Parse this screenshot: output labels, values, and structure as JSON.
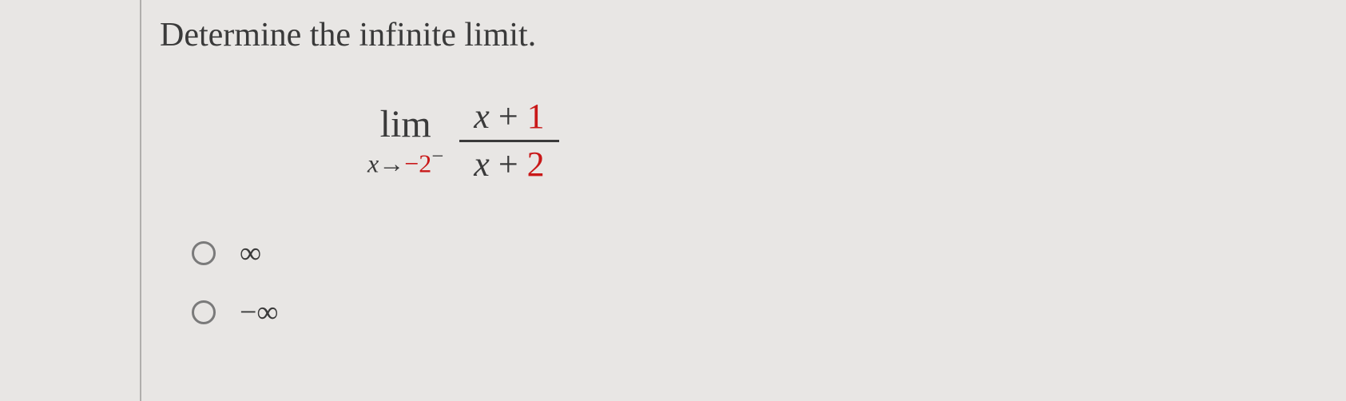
{
  "question": {
    "prompt": "Determine the infinite limit.",
    "expression": {
      "lim_label": "lim",
      "var": "x",
      "arrow": "→",
      "approach_value": "−2",
      "approach_side": "−",
      "numerator_var": "x",
      "numerator_op": " + ",
      "numerator_num": "1",
      "denominator_var": "x",
      "denominator_op": " + ",
      "denominator_num": "2"
    },
    "options": [
      {
        "label": "∞"
      },
      {
        "label": "−∞"
      }
    ]
  },
  "style": {
    "background_color": "#e8e6e4",
    "text_color": "#3a3a3a",
    "number_color": "#c91818",
    "border_color": "#b0aeac",
    "radio_border_color": "#7a7a7a",
    "prompt_fontsize": 42,
    "lim_fontsize": 48,
    "sub_fontsize": 32,
    "fraction_fontsize": 44,
    "option_fontsize": 38
  }
}
